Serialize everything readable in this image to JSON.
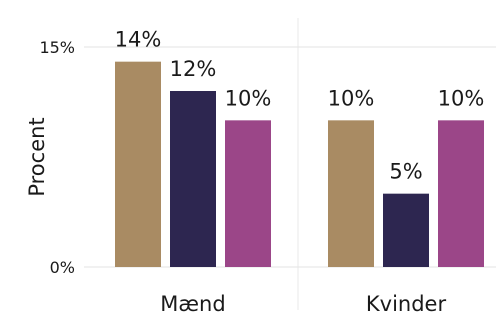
{
  "chart_data": {
    "type": "bar",
    "ylabel": "Procent",
    "ylim": [
      0,
      15
    ],
    "yticks": [
      {
        "value": 0,
        "label": "0%"
      },
      {
        "value": 15,
        "label": "15%"
      }
    ],
    "categories": [
      "Mænd",
      "Kvinder"
    ],
    "series": [
      {
        "color": "#a98b63",
        "values": [
          14,
          10
        ],
        "labels": [
          "14%",
          "10%"
        ]
      },
      {
        "color": "#2d2650",
        "values": [
          12,
          5
        ],
        "labels": [
          "12%",
          "5%"
        ]
      },
      {
        "color": "#9b4688",
        "values": [
          10,
          10
        ],
        "labels": [
          "10%",
          "10%"
        ]
      }
    ],
    "grid": true,
    "legend": "none"
  }
}
